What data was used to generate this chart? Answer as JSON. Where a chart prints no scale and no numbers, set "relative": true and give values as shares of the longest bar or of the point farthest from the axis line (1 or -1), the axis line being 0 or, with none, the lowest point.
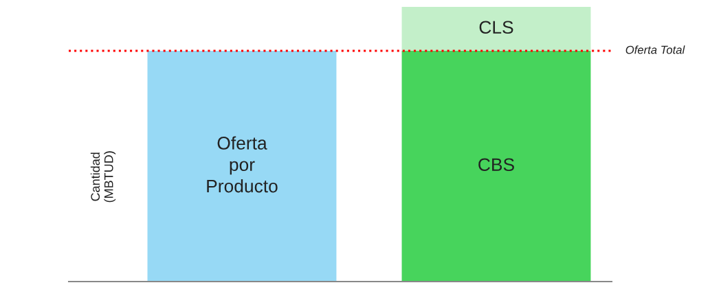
{
  "chart_data": {
    "type": "bar",
    "stacked": true,
    "relative": true,
    "ylabel": "Cantidad\n(MBTUD)",
    "categories": [
      null,
      null
    ],
    "series": [
      {
        "name": "Oferta\npor\nProducto",
        "color": "#97d9f5",
        "values": [
          0.84,
          null
        ]
      },
      {
        "name": "CBS",
        "color": "#47d45c",
        "values": [
          null,
          0.84
        ]
      },
      {
        "name": "CLS",
        "color": "#c3efc9",
        "values": [
          null,
          0.16
        ]
      }
    ],
    "ref_lines": [
      {
        "axis": "y",
        "value": 0.84,
        "label": "Oferta Total",
        "color": "#ff0000",
        "line_style": "dotted"
      }
    ],
    "legend": false,
    "grid": false
  }
}
